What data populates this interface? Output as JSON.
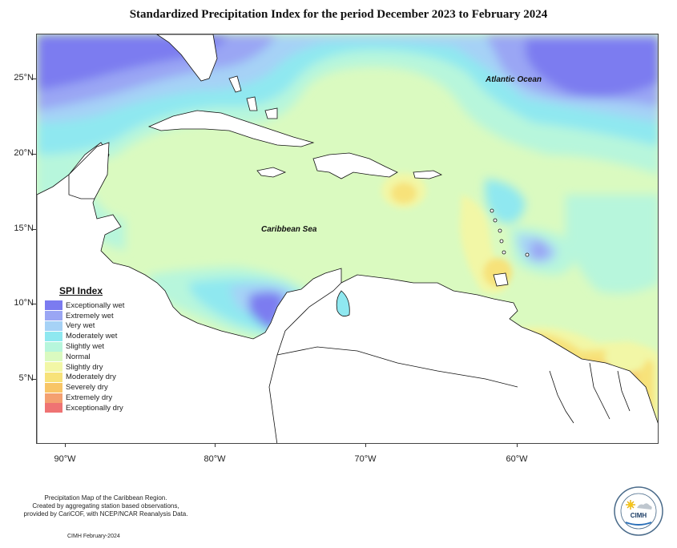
{
  "title": "Standardized Precipitation Index for the period December 2023 to February 2024",
  "latitude_labels": [
    "25°N",
    "20°N",
    "15°N",
    "10°N",
    "5°N"
  ],
  "longitude_labels": [
    "90°W",
    "80°W",
    "70°W",
    "60°W"
  ],
  "region_labels": {
    "atlantic": "Atlantic Ocean",
    "caribbean": "Caribbean Sea"
  },
  "legend": {
    "title": "SPI Index",
    "items": [
      {
        "label": "Exceptionally wet",
        "color": "#7b7bf0"
      },
      {
        "label": "Extremely wet",
        "color": "#9aa6f4"
      },
      {
        "label": "Very wet",
        "color": "#a6d2f6"
      },
      {
        "label": "Moderately wet",
        "color": "#8fe8f0"
      },
      {
        "label": "Slightly wet",
        "color": "#b7f6dc"
      },
      {
        "label": "Normal",
        "color": "#dafac0"
      },
      {
        "label": "Slightly dry",
        "color": "#f2f7a6"
      },
      {
        "label": "Moderately dry",
        "color": "#f7e27a"
      },
      {
        "label": "Severely dry",
        "color": "#f8c566"
      },
      {
        "label": "Extremely dry",
        "color": "#f4a070"
      },
      {
        "label": "Exceptionally dry",
        "color": "#ef7373"
      }
    ]
  },
  "footer": {
    "line1": "Precipitation Map of the Caribbean Region.",
    "line2": "Created by aggregating station based observations,",
    "line3": "provided by CariCOF, with NCEP/NCAR Reanalysis Data.",
    "date": "CIMH February-2024"
  },
  "logo": {
    "text": "CIMH",
    "icon": "cimh-logo-icon"
  }
}
